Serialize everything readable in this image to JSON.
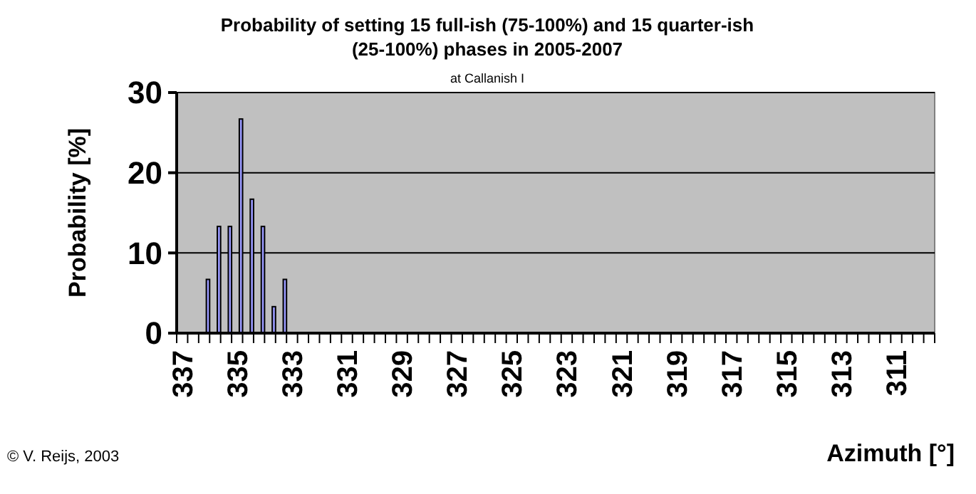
{
  "chart_data": {
    "type": "bar",
    "title": "Probability of setting 15 full-ish (75-100%) and 15 quarter-ish (25-100%) phases in 2005-2007",
    "subtitle": "at Callanish I",
    "xlabel": "Azimuth [°]",
    "ylabel": "Probability [%]",
    "annotations": [
      "© V. Reijs, 2003"
    ],
    "categories": [
      "337",
      null,
      null,
      null,
      null,
      "335",
      null,
      null,
      null,
      null,
      "333",
      null,
      null,
      null,
      null,
      "331",
      null,
      null,
      null,
      null,
      "329",
      null,
      null,
      null,
      null,
      "327",
      null,
      null,
      null,
      null,
      "325",
      null,
      null,
      null,
      null,
      "323",
      null,
      null,
      null,
      null,
      "321",
      null,
      null,
      null,
      null,
      "319",
      null,
      null,
      null,
      null,
      "317",
      null,
      null,
      null,
      null,
      "315",
      null,
      null,
      null,
      null,
      "313",
      null,
      null,
      null,
      null,
      "311",
      null,
      null,
      null
    ],
    "values": [
      0,
      0,
      6.7,
      13.3,
      13.3,
      26.7,
      16.7,
      13.3,
      3.3,
      6.7,
      0,
      0,
      0,
      0,
      0,
      0,
      0,
      0,
      0,
      0,
      0,
      0,
      0,
      0,
      0,
      0,
      0,
      0,
      0,
      0,
      0,
      0,
      0,
      0,
      0,
      0,
      0,
      0,
      0,
      0,
      0,
      0,
      0,
      0,
      0,
      0,
      0,
      0,
      0,
      0,
      0,
      0,
      0,
      0,
      0,
      0,
      0,
      0,
      0,
      0,
      0,
      0,
      0,
      0,
      0,
      0,
      0,
      0,
      0
    ],
    "color": "#9999ff",
    "ylim": [
      0,
      30
    ],
    "yticks": [
      0,
      10,
      20,
      30
    ],
    "grid": "y"
  }
}
